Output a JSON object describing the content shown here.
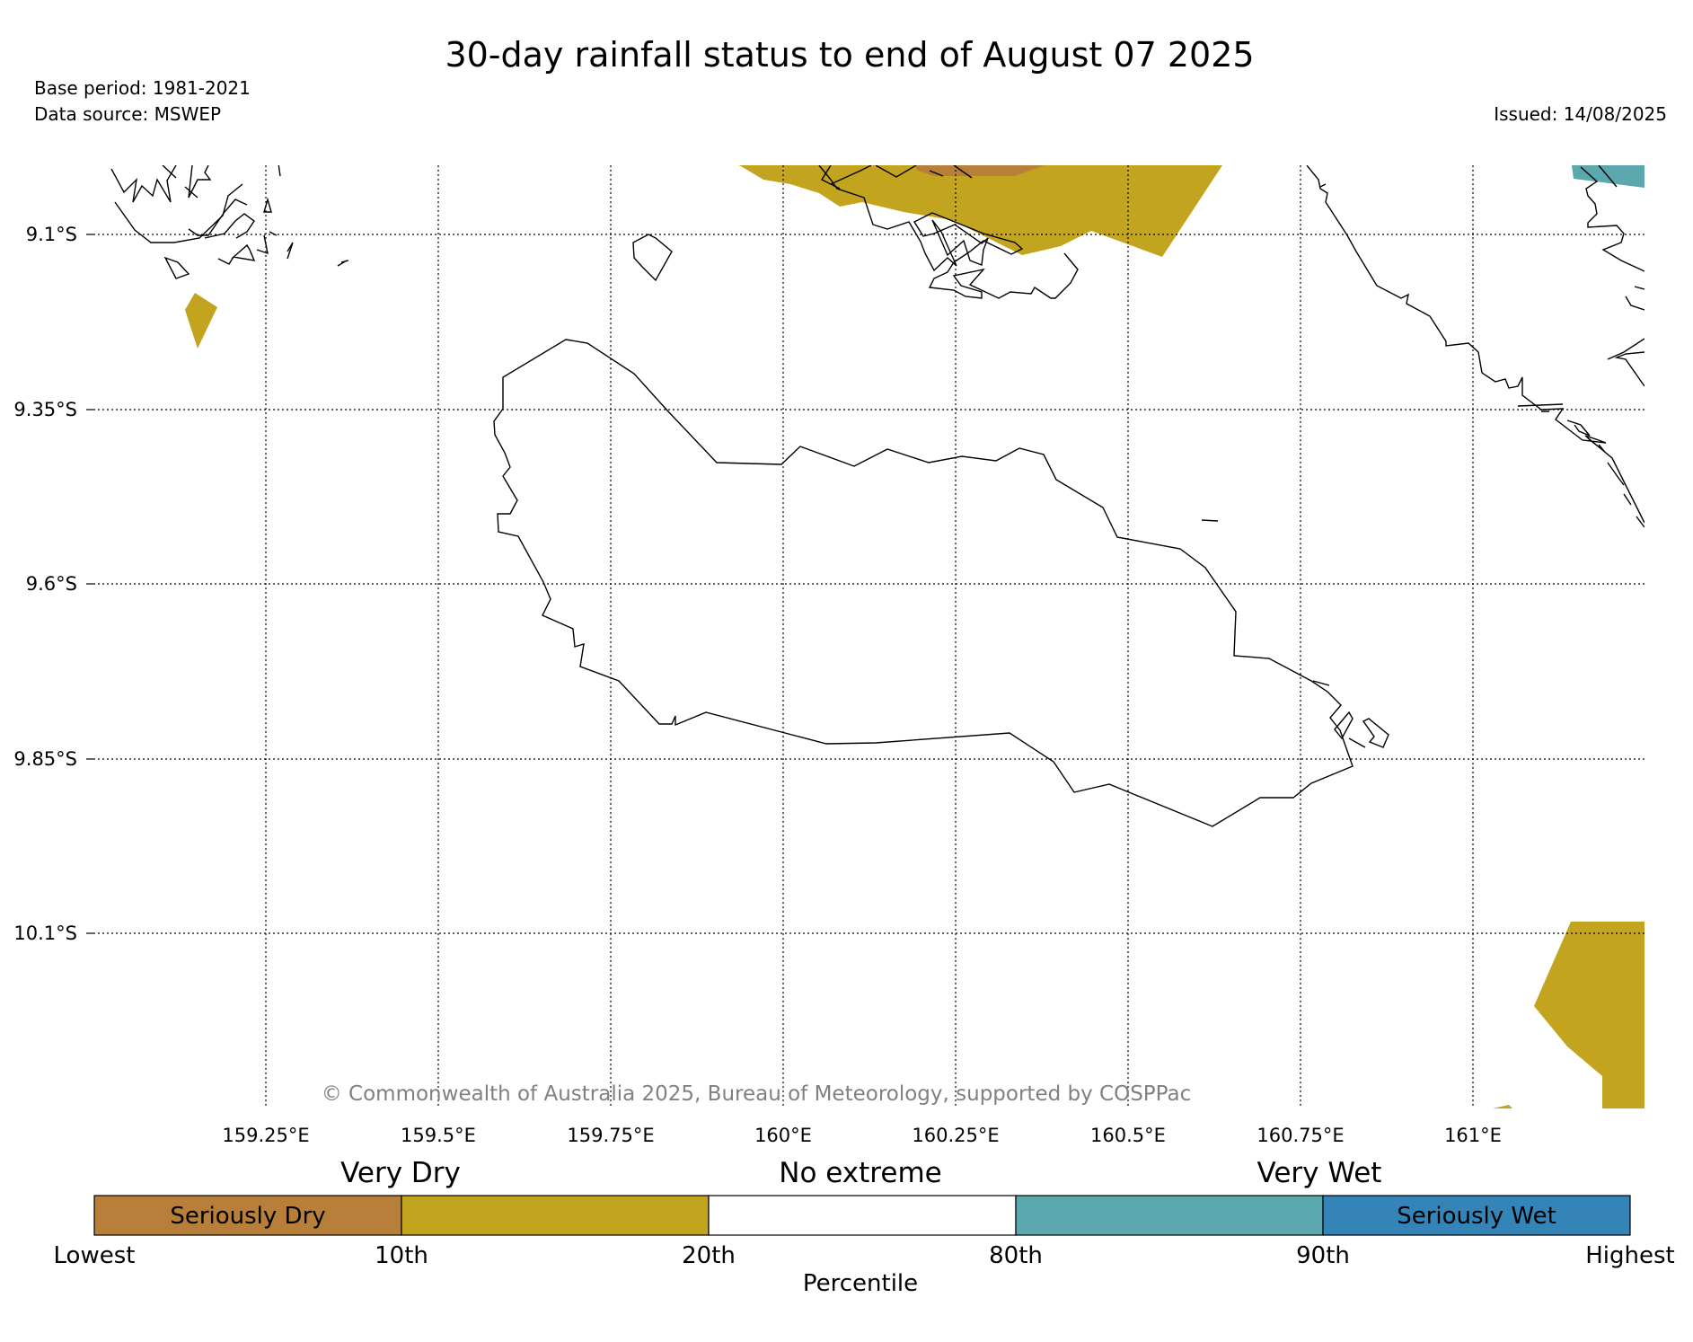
{
  "header": {
    "title": "30-day rainfall status to end of August 07 2025",
    "base_period": "Base period: 1981-2021",
    "data_source": "Data source: MSWEP",
    "issued": "Issued: 14/08/2025"
  },
  "map": {
    "lat_labels": [
      "9.1°S",
      "9.35°S",
      "9.6°S",
      "9.85°S",
      "10.1°S"
    ],
    "lon_labels": [
      "159.25°E",
      "159.5°E",
      "159.75°E",
      "160°E",
      "160.25°E",
      "160.5°E",
      "160.75°E",
      "161°E"
    ],
    "copyright": "© Commonwealth of Australia 2025, Bureau of Meteorology, supported by COSPPac"
  },
  "legend": {
    "group_labels": [
      "Very Dry",
      "No extreme",
      "Very Wet"
    ],
    "box_labels": [
      "Seriously Dry",
      "",
      "",
      "",
      "Seriously Wet"
    ],
    "colors": [
      "#b87f3a",
      "#c2a41f",
      "#ffffff",
      "#5ba8ae",
      "#3584b8"
    ],
    "tick_labels": [
      "Lowest",
      "10th",
      "20th",
      "80th",
      "90th",
      "Highest"
    ],
    "axis_label": "Percentile"
  }
}
